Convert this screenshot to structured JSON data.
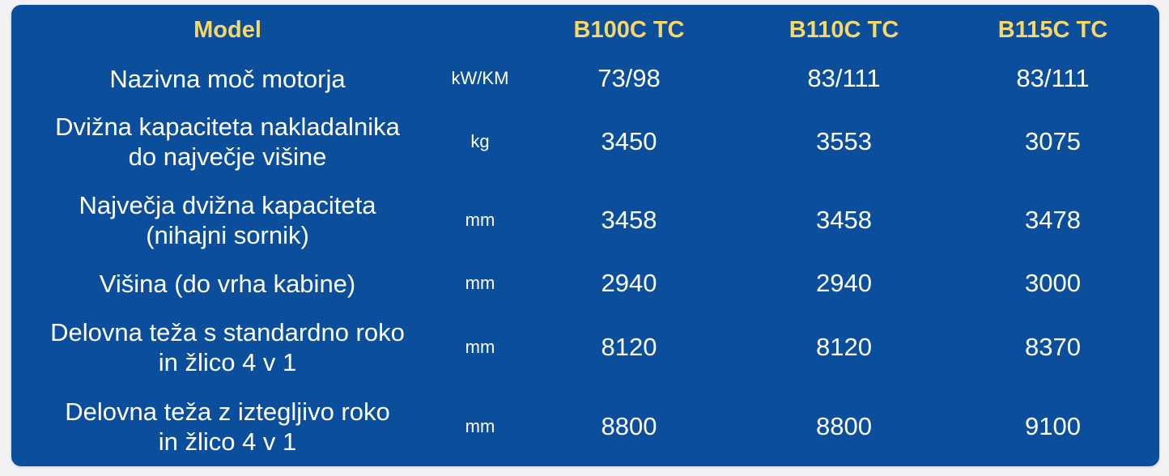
{
  "header": {
    "model_label": "Model",
    "unit_label": "",
    "models": [
      "B100C TC",
      "B110C TC",
      "B115C TC"
    ]
  },
  "rows": [
    {
      "label_lines": [
        "Nazivna moč motorja"
      ],
      "unit": "kW/KM",
      "values": [
        "73/98",
        "83/111",
        "83/111"
      ]
    },
    {
      "label_lines": [
        "Dvižna kapaciteta nakladalnika",
        "do največje višine"
      ],
      "unit": "kg",
      "values": [
        "3450",
        "3553",
        "3075"
      ]
    },
    {
      "label_lines": [
        "Največja dvižna kapaciteta",
        "(nihajni sornik)"
      ],
      "unit": "mm",
      "values": [
        "3458",
        "3458",
        "3478"
      ]
    },
    {
      "label_lines": [
        "Višina (do vrha kabine)"
      ],
      "unit": "mm",
      "values": [
        "2940",
        "2940",
        "3000"
      ]
    },
    {
      "label_lines": [
        "Delovna teža s standardno roko",
        "in žlico 4 v 1"
      ],
      "unit": "mm",
      "values": [
        "8120",
        "8120",
        "8370"
      ]
    },
    {
      "label_lines": [
        "Delovna teža z iztegljivo roko",
        "in žlico 4 v 1"
      ],
      "unit": "mm",
      "values": [
        "8800",
        "8800",
        "9100"
      ]
    }
  ],
  "colors": {
    "background": "#0b4f9c",
    "header_text": "#f5d76a",
    "body_text": "#ffffff"
  }
}
